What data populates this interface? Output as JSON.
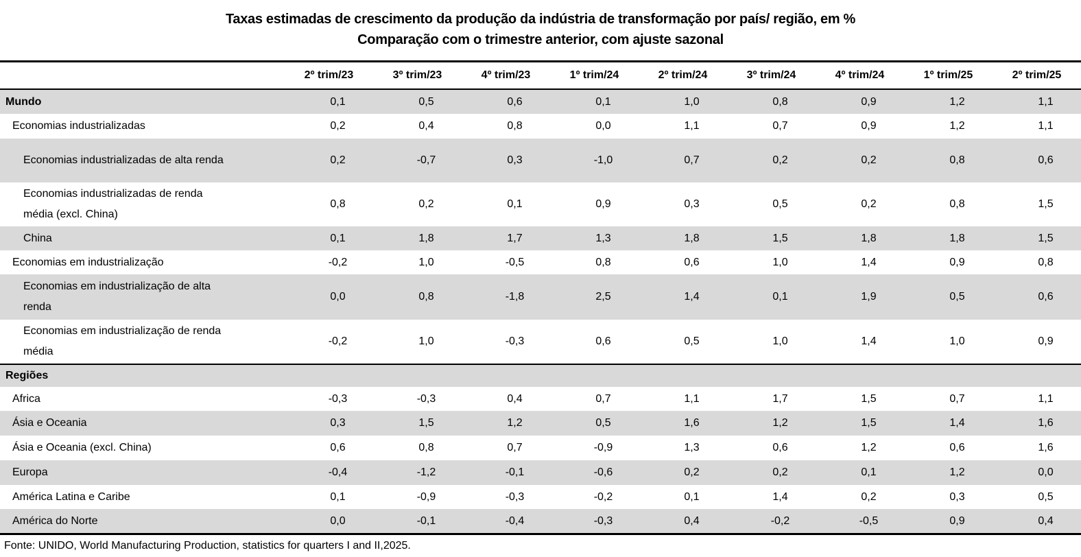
{
  "chart_data": {
    "type": "table",
    "title": "Taxas estimadas de crescimento da produção da indústria de transformação por país/ região, em %",
    "subtitle": "Comparação com o trimestre anterior, com ajuste sazonal",
    "unit": "%",
    "decimal_separator": ",",
    "columns": [
      "2º trim/23",
      "3º trim/23",
      "4º trim/23",
      "1º trim/24",
      "2º trim/24",
      "3º trim/24",
      "4º trim/24",
      "1º trim/25",
      "2º trim/25"
    ],
    "rows": [
      {
        "label": "Mundo",
        "level": 0,
        "group": true,
        "section": false,
        "values": [
          0.1,
          0.5,
          0.6,
          0.1,
          1.0,
          0.8,
          0.9,
          1.2,
          1.1
        ]
      },
      {
        "label": "Economias industrializadas",
        "level": 1,
        "group": false,
        "section": false,
        "values": [
          0.2,
          0.4,
          0.8,
          0.0,
          1.1,
          0.7,
          0.9,
          1.2,
          1.1
        ]
      },
      {
        "label": "Economias industrializadas de alta renda",
        "level": 2,
        "group": false,
        "section": false,
        "values": [
          0.2,
          -0.7,
          0.3,
          -1.0,
          0.7,
          0.2,
          0.2,
          0.8,
          0.6
        ]
      },
      {
        "label": "Economias industrializadas de renda média (excl. China)",
        "level": 2,
        "group": false,
        "section": false,
        "values": [
          0.8,
          0.2,
          0.1,
          0.9,
          0.3,
          0.5,
          0.2,
          0.8,
          1.5
        ]
      },
      {
        "label": "China",
        "level": 2,
        "group": false,
        "section": false,
        "values": [
          0.1,
          1.8,
          1.7,
          1.3,
          1.8,
          1.5,
          1.8,
          1.8,
          1.5
        ]
      },
      {
        "label": "Economias em industrialização",
        "level": 1,
        "group": false,
        "section": false,
        "values": [
          -0.2,
          1.0,
          -0.5,
          0.8,
          0.6,
          1.0,
          1.4,
          0.9,
          0.8
        ]
      },
      {
        "label": "Economias em industrialização de alta renda",
        "level": 2,
        "group": false,
        "section": false,
        "values": [
          0.0,
          0.8,
          -1.8,
          2.5,
          1.4,
          0.1,
          1.9,
          0.5,
          0.6
        ]
      },
      {
        "label": "Economias em industrialização de renda média",
        "level": 2,
        "group": false,
        "section": false,
        "values": [
          -0.2,
          1.0,
          -0.3,
          0.6,
          0.5,
          1.0,
          1.4,
          1.0,
          0.9
        ]
      },
      {
        "label": "Regiões",
        "level": 0,
        "group": true,
        "section": true,
        "values": []
      },
      {
        "label": "Africa",
        "level": 1,
        "group": false,
        "section": false,
        "values": [
          -0.3,
          -0.3,
          0.4,
          0.7,
          1.1,
          1.7,
          1.5,
          0.7,
          1.1
        ]
      },
      {
        "label": "Ásia e Oceania",
        "level": 1,
        "group": false,
        "section": false,
        "values": [
          0.3,
          1.5,
          1.2,
          0.5,
          1.6,
          1.2,
          1.5,
          1.4,
          1.6
        ]
      },
      {
        "label": "Ásia e Oceania (excl. China)",
        "level": 1,
        "group": false,
        "section": false,
        "values": [
          0.6,
          0.8,
          0.7,
          -0.9,
          1.3,
          0.6,
          1.2,
          0.6,
          1.6
        ]
      },
      {
        "label": "Europa",
        "level": 1,
        "group": false,
        "section": false,
        "values": [
          -0.4,
          -1.2,
          -0.1,
          -0.6,
          0.2,
          0.2,
          0.1,
          1.2,
          0.0
        ]
      },
      {
        "label": "América Latina e Caribe",
        "level": 1,
        "group": false,
        "section": false,
        "values": [
          0.1,
          -0.9,
          -0.3,
          -0.2,
          0.1,
          1.4,
          0.2,
          0.3,
          0.5
        ]
      },
      {
        "label": "América do Norte",
        "level": 1,
        "group": false,
        "section": false,
        "values": [
          0.0,
          -0.1,
          -0.4,
          -0.3,
          0.4,
          -0.2,
          -0.5,
          0.9,
          0.4
        ]
      }
    ],
    "source": "Fonte: UNIDO, World Manufacturing Production, statistics for quarters I and II,2025.",
    "layout": {
      "legend": "none",
      "grid": "row-shading"
    },
    "colors": {
      "row_shade": "#D9D9D9",
      "border": "#000000",
      "text": "#000000",
      "background": "#FFFFFF"
    }
  }
}
